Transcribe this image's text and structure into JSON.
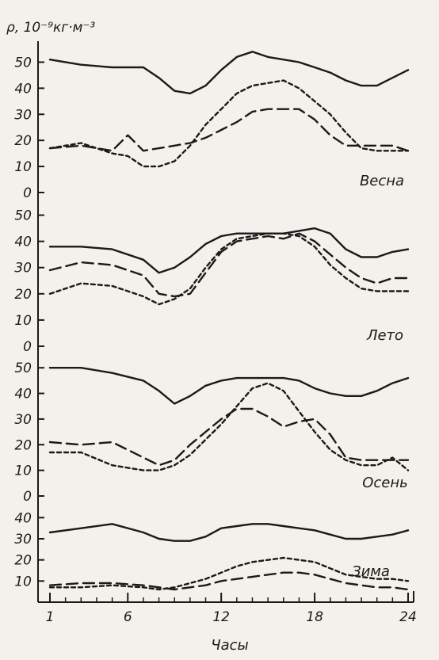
{
  "chart_data": {
    "type": "line",
    "ylabel": "ρ, 10⁻⁹кг·м⁻³",
    "xlabel": "Часы",
    "x_ticks": [
      "1",
      "6",
      "12",
      "18",
      "24"
    ],
    "xlim": [
      1,
      24
    ],
    "line_styles": [
      "solid",
      "long-dash",
      "short-dash"
    ],
    "panels": [
      {
        "label": "Весна",
        "ylim": [
          0,
          55
        ],
        "y_ticks": [
          "50",
          "40",
          "30",
          "20",
          "10",
          "0"
        ],
        "series": [
          {
            "style": "solid",
            "x": [
              1,
              3,
              5,
              7,
              8,
              9,
              10,
              11,
              12,
              13,
              14,
              15,
              16,
              17,
              18,
              19,
              20,
              21,
              22,
              23,
              24
            ],
            "y": [
              51,
              49,
              48,
              48,
              44,
              39,
              38,
              41,
              47,
              52,
              54,
              52,
              51,
              50,
              48,
              46,
              43,
              41,
              41,
              44,
              47
            ]
          },
          {
            "style": "long-dash",
            "x": [
              1,
              3,
              5,
              6,
              7,
              8,
              9,
              10,
              11,
              12,
              13,
              14,
              15,
              16,
              17,
              18,
              19,
              20,
              21,
              22,
              23,
              24
            ],
            "y": [
              17,
              18,
              16,
              22,
              16,
              17,
              18,
              19,
              21,
              24,
              27,
              31,
              32,
              32,
              32,
              28,
              22,
              18,
              18,
              18,
              18,
              16
            ]
          },
          {
            "style": "short-dash",
            "x": [
              1,
              3,
              5,
              6,
              7,
              8,
              9,
              10,
              11,
              12,
              13,
              14,
              15,
              16,
              17,
              18,
              19,
              20,
              21,
              22,
              23,
              24
            ],
            "y": [
              17,
              19,
              15,
              14,
              10,
              10,
              12,
              18,
              26,
              32,
              38,
              41,
              42,
              43,
              40,
              35,
              30,
              23,
              17,
              16,
              16,
              16
            ]
          }
        ]
      },
      {
        "label": "Лето",
        "ylim": [
          0,
          55
        ],
        "y_ticks": [
          "50",
          "40",
          "30",
          "20",
          "10",
          "0"
        ],
        "series": [
          {
            "style": "solid",
            "x": [
              1,
              3,
              5,
              7,
              8,
              9,
              10,
              11,
              12,
              13,
              14,
              15,
              16,
              17,
              18,
              19,
              20,
              21,
              22,
              23,
              24
            ],
            "y": [
              38,
              38,
              37,
              33,
              28,
              30,
              34,
              39,
              42,
              43,
              43,
              43,
              43,
              44,
              45,
              43,
              37,
              34,
              34,
              36,
              37
            ]
          },
          {
            "style": "long-dash",
            "x": [
              1,
              3,
              5,
              7,
              8,
              9,
              10,
              11,
              12,
              13,
              14,
              15,
              16,
              17,
              18,
              19,
              20,
              21,
              22,
              23,
              24
            ],
            "y": [
              29,
              32,
              31,
              27,
              20,
              19,
              20,
              28,
              36,
              40,
              41,
              42,
              41,
              43,
              40,
              35,
              30,
              26,
              24,
              26,
              26
            ]
          },
          {
            "style": "short-dash",
            "x": [
              1,
              3,
              5,
              7,
              8,
              9,
              10,
              11,
              12,
              13,
              14,
              15,
              16,
              17,
              18,
              19,
              20,
              21,
              22,
              23,
              24
            ],
            "y": [
              20,
              24,
              23,
              19,
              16,
              18,
              22,
              30,
              37,
              41,
              42,
              43,
              43,
              42,
              38,
              31,
              26,
              22,
              21,
              21,
              21
            ]
          }
        ]
      },
      {
        "label": "Осень",
        "ylim": [
          0,
          55
        ],
        "y_ticks": [
          "50",
          "40",
          "30",
          "20",
          "10",
          "0"
        ],
        "series": [
          {
            "style": "solid",
            "x": [
              1,
              3,
              5,
              7,
              8,
              9,
              10,
              11,
              12,
              13,
              14,
              15,
              16,
              17,
              18,
              19,
              20,
              21,
              22,
              23,
              24
            ],
            "y": [
              50,
              50,
              48,
              45,
              41,
              36,
              39,
              43,
              45,
              46,
              46,
              46,
              46,
              45,
              42,
              40,
              39,
              39,
              41,
              44,
              46
            ]
          },
          {
            "style": "long-dash",
            "x": [
              1,
              3,
              5,
              7,
              8,
              9,
              10,
              11,
              12,
              13,
              14,
              15,
              16,
              17,
              18,
              19,
              20,
              21,
              22,
              23,
              24
            ],
            "y": [
              21,
              20,
              21,
              15,
              12,
              14,
              20,
              25,
              30,
              34,
              34,
              31,
              27,
              29,
              30,
              24,
              15,
              14,
              14,
              14,
              14
            ]
          },
          {
            "style": "short-dash",
            "x": [
              1,
              3,
              5,
              7,
              8,
              9,
              10,
              11,
              12,
              13,
              14,
              15,
              16,
              17,
              18,
              19,
              20,
              21,
              22,
              23,
              24
            ],
            "y": [
              17,
              17,
              12,
              10,
              10,
              12,
              16,
              22,
              28,
              35,
              42,
              44,
              41,
              33,
              25,
              18,
              14,
              12,
              12,
              15,
              10
            ]
          }
        ]
      },
      {
        "label": "Зима",
        "ylim": [
          0,
          45
        ],
        "y_ticks": [
          "40",
          "30",
          "20",
          "10"
        ],
        "series": [
          {
            "style": "solid",
            "x": [
              1,
              3,
              5,
              7,
              8,
              9,
              10,
              11,
              12,
              13,
              14,
              15,
              16,
              17,
              18,
              19,
              20,
              21,
              22,
              23,
              24
            ],
            "y": [
              33,
              35,
              37,
              33,
              30,
              29,
              29,
              31,
              35,
              36,
              37,
              37,
              36,
              35,
              34,
              32,
              30,
              30,
              31,
              32,
              34
            ]
          },
          {
            "style": "long-dash",
            "x": [
              1,
              3,
              5,
              7,
              8,
              9,
              10,
              11,
              12,
              13,
              14,
              15,
              16,
              17,
              18,
              19,
              20,
              21,
              22,
              23,
              24
            ],
            "y": [
              8,
              9,
              9,
              8,
              7,
              6,
              7,
              8,
              10,
              11,
              12,
              13,
              14,
              14,
              13,
              11,
              9,
              8,
              7,
              7,
              6
            ]
          },
          {
            "style": "short-dash",
            "x": [
              1,
              3,
              5,
              7,
              8,
              9,
              10,
              11,
              12,
              13,
              14,
              15,
              16,
              17,
              18,
              19,
              20,
              21,
              22,
              23,
              24
            ],
            "y": [
              7,
              7,
              8,
              7,
              6,
              7,
              9,
              11,
              14,
              17,
              19,
              20,
              21,
              20,
              19,
              16,
              13,
              12,
              11,
              11,
              10
            ]
          }
        ]
      }
    ]
  }
}
